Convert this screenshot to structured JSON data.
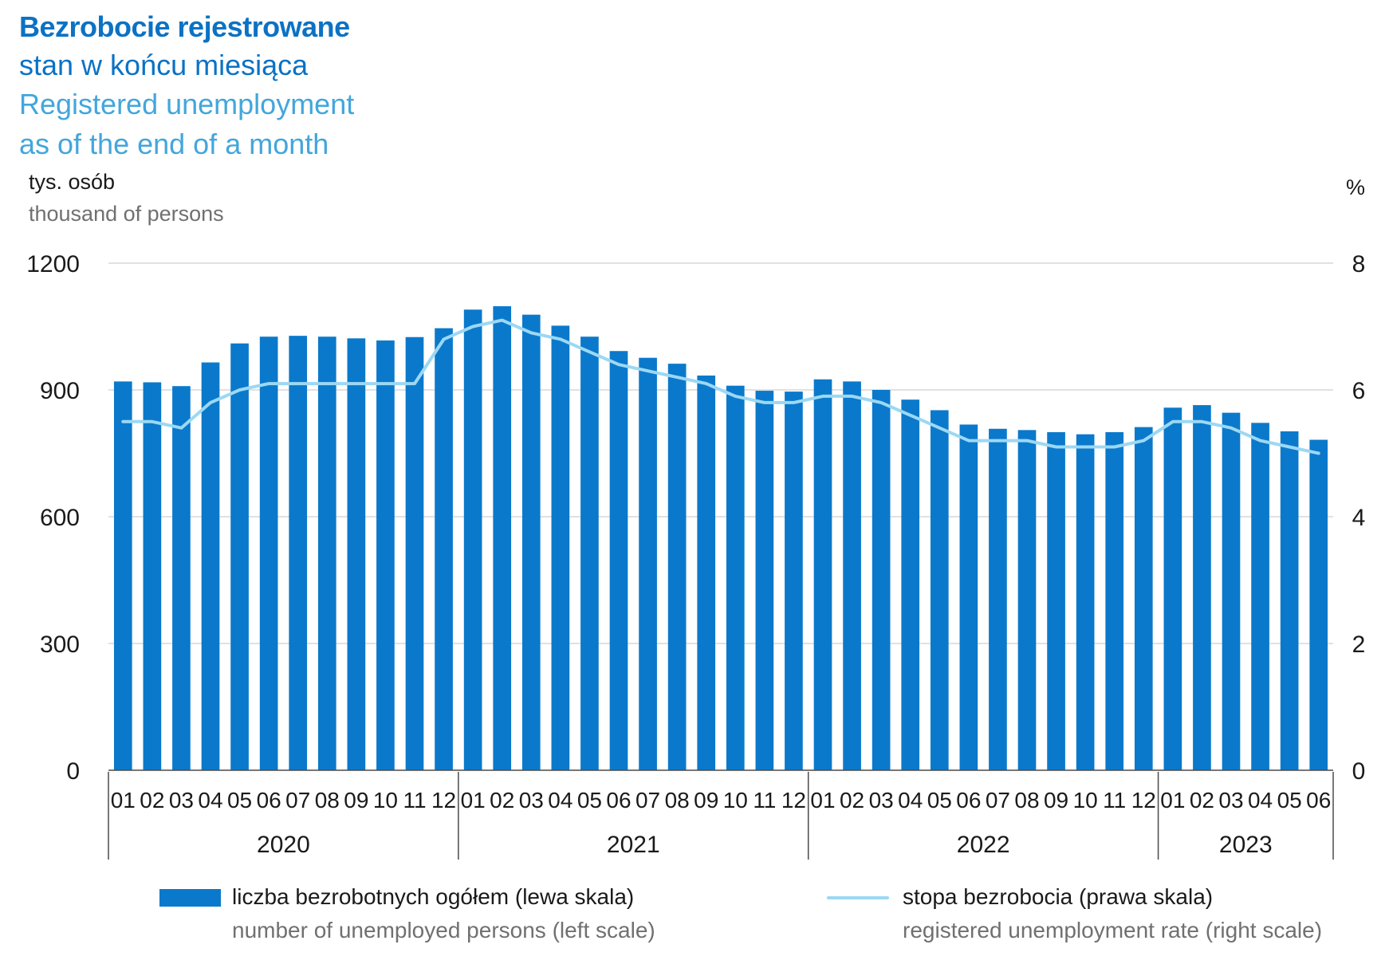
{
  "title": {
    "pl_line1": "Bezrobocie rejestrowane",
    "pl_line2": "stan w końcu miesiąca",
    "en_line1": "Registered unemployment",
    "en_line2": "as of the end of a month"
  },
  "units": {
    "left_pl": "tys. osób",
    "left_en": "thousand of persons",
    "right": "%"
  },
  "legend": {
    "bars_pl": "liczba bezrobotnych ogółem (lewa skala)",
    "bars_en": "number of unemployed persons (left scale)",
    "line_pl": "stopa bezrobocia (prawa skala)",
    "line_en": "registered unemployment rate (right scale)"
  },
  "colors": {
    "bar": "#0a79cb",
    "line": "#9cd8f4",
    "grid": "#cfcfcf",
    "axis": "#4a4a4a"
  },
  "chart_data": {
    "type": "bar",
    "categories": [
      "01",
      "02",
      "03",
      "04",
      "05",
      "06",
      "07",
      "08",
      "09",
      "10",
      "11",
      "12",
      "01",
      "02",
      "03",
      "04",
      "05",
      "06",
      "07",
      "08",
      "09",
      "10",
      "11",
      "12",
      "01",
      "02",
      "03",
      "04",
      "05",
      "06",
      "07",
      "08",
      "09",
      "10",
      "11",
      "12",
      "01",
      "02",
      "03",
      "04",
      "05",
      "06"
    ],
    "years": [
      {
        "label": "2020",
        "months": 12
      },
      {
        "label": "2021",
        "months": 12
      },
      {
        "label": "2022",
        "months": 12
      },
      {
        "label": "2023",
        "months": 6
      }
    ],
    "series": [
      {
        "name": "liczba bezrobotnych ogółem (lewa skala)",
        "type": "bar",
        "axis": "left",
        "values": [
          920,
          918,
          909,
          965,
          1010,
          1026,
          1028,
          1026,
          1022,
          1017,
          1025,
          1046,
          1090,
          1098,
          1078,
          1052,
          1026,
          992,
          976,
          962,
          934,
          910,
          898,
          896,
          925,
          920,
          900,
          877,
          852,
          818,
          808,
          805,
          800,
          795,
          800,
          812,
          858,
          864,
          846,
          822,
          802,
          782
        ]
      },
      {
        "name": "stopa bezrobocia (prawa skala)",
        "type": "line",
        "axis": "right",
        "values": [
          5.5,
          5.5,
          5.4,
          5.8,
          6.0,
          6.1,
          6.1,
          6.1,
          6.1,
          6.1,
          6.1,
          6.8,
          7.0,
          7.1,
          6.9,
          6.8,
          6.6,
          6.4,
          6.3,
          6.2,
          6.1,
          5.9,
          5.8,
          5.8,
          5.9,
          5.9,
          5.8,
          5.6,
          5.4,
          5.2,
          5.2,
          5.2,
          5.1,
          5.1,
          5.1,
          5.2,
          5.5,
          5.5,
          5.4,
          5.2,
          5.1,
          5.0
        ]
      }
    ],
    "left_axis": {
      "ylim": [
        0,
        1200
      ],
      "ticks": [
        0,
        300,
        600,
        900,
        1200
      ]
    },
    "right_axis": {
      "ylim": [
        0,
        8
      ],
      "ticks": [
        0,
        2,
        4,
        6,
        8
      ]
    },
    "grid": true,
    "legend_position": "bottom"
  }
}
